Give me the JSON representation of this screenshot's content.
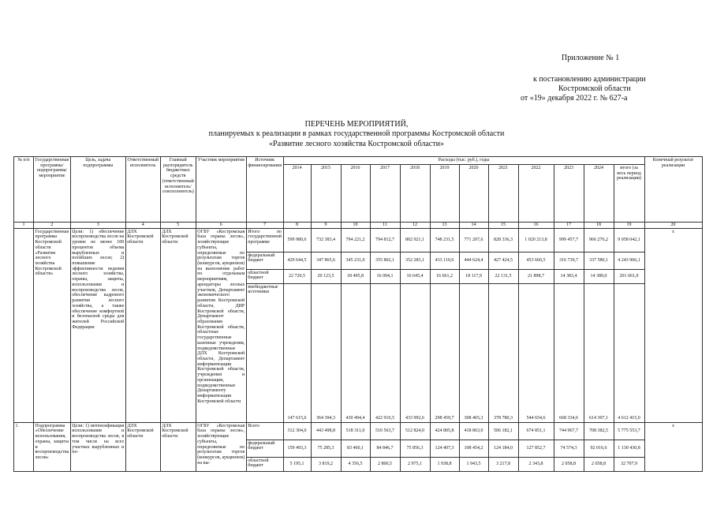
{
  "header": {
    "appendix": "Приложение № 1",
    "lines": [
      "к постановлению администрации",
      "Костромской области",
      "от «19» декабря 2022 г. № 627-а"
    ]
  },
  "title": {
    "lines": [
      "ПЕРЕЧЕНЬ МЕРОПРИЯТИЙ,",
      "планируемых к реализации в рамках государственной программы Костромской области",
      "«Развитие лесного хозяйства Костромской области»"
    ]
  },
  "table": {
    "left_headers": [
      "№ п/п",
      "Государственная программа/ подпрограмма/мероприятие",
      "Цель, задача подпрограммы",
      "Ответственный исполнитель",
      "Главный распорядитель бюджетных средств (ответственный исполнитель/соисполнитель)",
      "Участник мероприятия",
      "Источник финансирования"
    ],
    "group_header": "Расходы (тыс. руб.), годы",
    "year_headers": [
      "2014",
      "2015",
      "2016",
      "2017",
      "2018",
      "2019",
      "2020",
      "2021",
      "2022",
      "2023",
      "2024",
      "итого (за весь период реализации)"
    ],
    "result_header": "Конечный результат реализации",
    "column_numbers": [
      "1",
      "2",
      "3",
      "4",
      "5",
      "6",
      "7",
      "8",
      "9",
      "10",
      "11",
      "12",
      "13",
      "14",
      "15",
      "16",
      "17",
      "18",
      "19",
      "20"
    ],
    "rows": [
      {
        "cells": [
          "Государственная программа Костромской области «Развитие лесного хозяйства Костромской области»",
          "Цели: 1) обеспечение воспроизводства лесов на уровне не менее 100 процентов объема вырубленных и погибших лесов; 2) повышение эффективности ведения лесного хозяйства, охраны, защиты, использования и воспроизводства лесов, обеспечение кадрового развития лесного хозяйства, а также обеспечение комфортной и безопасной среды для жителей Российской Федерации",
          "ДЛХ Костромской области",
          "ДЛХ Костромской области",
          "ОГБУ «Костромская база охраны лесов», хозяйствующие субъекты, определяемые по результатам торгов (конкурсов, аукционов) на выполнение работ по отдельным мероприятиям, арендаторы лесных участков, Департамент экономического развития Костромской области, ДИР Костромской области, Департамент образования Костромской области, областные государственные казенные учреждения, подведомственные ДЛХ Костромской области, Департамент информатизации Костромской области, учреждения и организации, подведомственные Департаменту информатизации Костромской области"
        ],
        "result": "х",
        "sources": [
          {
            "name": "Итого по государственной программе",
            "values": [
              "599 980,6",
              "732 383,4",
              "794 221,2",
              "794 812,7",
              "802 921,1",
              "748 231,5",
              "771 207,6",
              "828 336,3",
              "1 020 213,8",
              "999 457,7",
              "966 276,2",
              "9 058 042,1"
            ]
          },
          {
            "name": "федеральный бюджет",
            "values": [
              "429 644,5",
              "347 865,6",
              "345 231,0",
              "355 802,1",
              "352 283,1",
              "433 110,6",
              "444 624,4",
              "427 424,5",
              "453 660,5",
              "316 739,7",
              "337 580,1",
              "4 243 966,1"
            ]
          },
          {
            "name": "областной бюджет",
            "values": [
              "22 720,5",
              "20 123,5",
              "18 495,8",
              "16 094,1",
              "16 645,4",
              "16 661,2",
              "18 117,9",
              "22 131,5",
              "21 898,7",
              "14 383,4",
              "14 389,0",
              "201 661,0"
            ]
          },
          {
            "name": "внебюджетные источники",
            "values": [
              "147 615,6",
              "364 394,3",
              "430 494,4",
              "422 916,5",
              "433 992,6",
              "298 459,7",
              "308 465,3",
              "378 780,3",
              "544 654,6",
              "668 334,6",
              "614 307,1",
              "4 612 415,0"
            ]
          }
        ]
      },
      {
        "number": "1.",
        "cells": [
          "Подпрограмма «Обеспечение использования, охраны, защиты и воспроизводства лесов»",
          "Цели: 1) интенсификация использования и воспроизводства лесов, в том числе на всех участках вырубленных и по-",
          "ДЛХ Костромской области",
          "ДЛХ Костромской области",
          "ОГБУ «Костромская база охраны лесов», хозяйствующие субъекты, определяемые по результатам торгов (конкурсов, аукционов) на вы-"
        ],
        "result": "х",
        "sources": [
          {
            "name": "Всего",
            "values": [
              "312 304,0",
              "443 498,8",
              "518 311,0",
              "510 563,7",
              "512 824,0",
              "424 805,8",
              "418 863,0",
              "506 182,1",
              "674 851,1",
              "744 967,7",
              "708 382,5",
              "5 775 553,7"
            ]
          },
          {
            "name": "федеральный бюджет",
            "values": [
              "159 493,3",
              "75 285,3",
              "83 460,1",
              "84 846,7",
              "75 856,3",
              "124 407,3",
              "108 454,2",
              "124 184,0",
              "127 852,7",
              "74 574,3",
              "92 016,6",
              "1 130 430,8"
            ]
          },
          {
            "name": "областной бюджет",
            "values": [
              "5 195,1",
              "3 819,2",
              "4 356,5",
              "2 800,5",
              "2 975,1",
              "1 938,8",
              "1 943,5",
              "3 217,8",
              "2 343,8",
              "2 058,8",
              "2 058,8",
              "32 707,9"
            ]
          }
        ]
      }
    ]
  }
}
